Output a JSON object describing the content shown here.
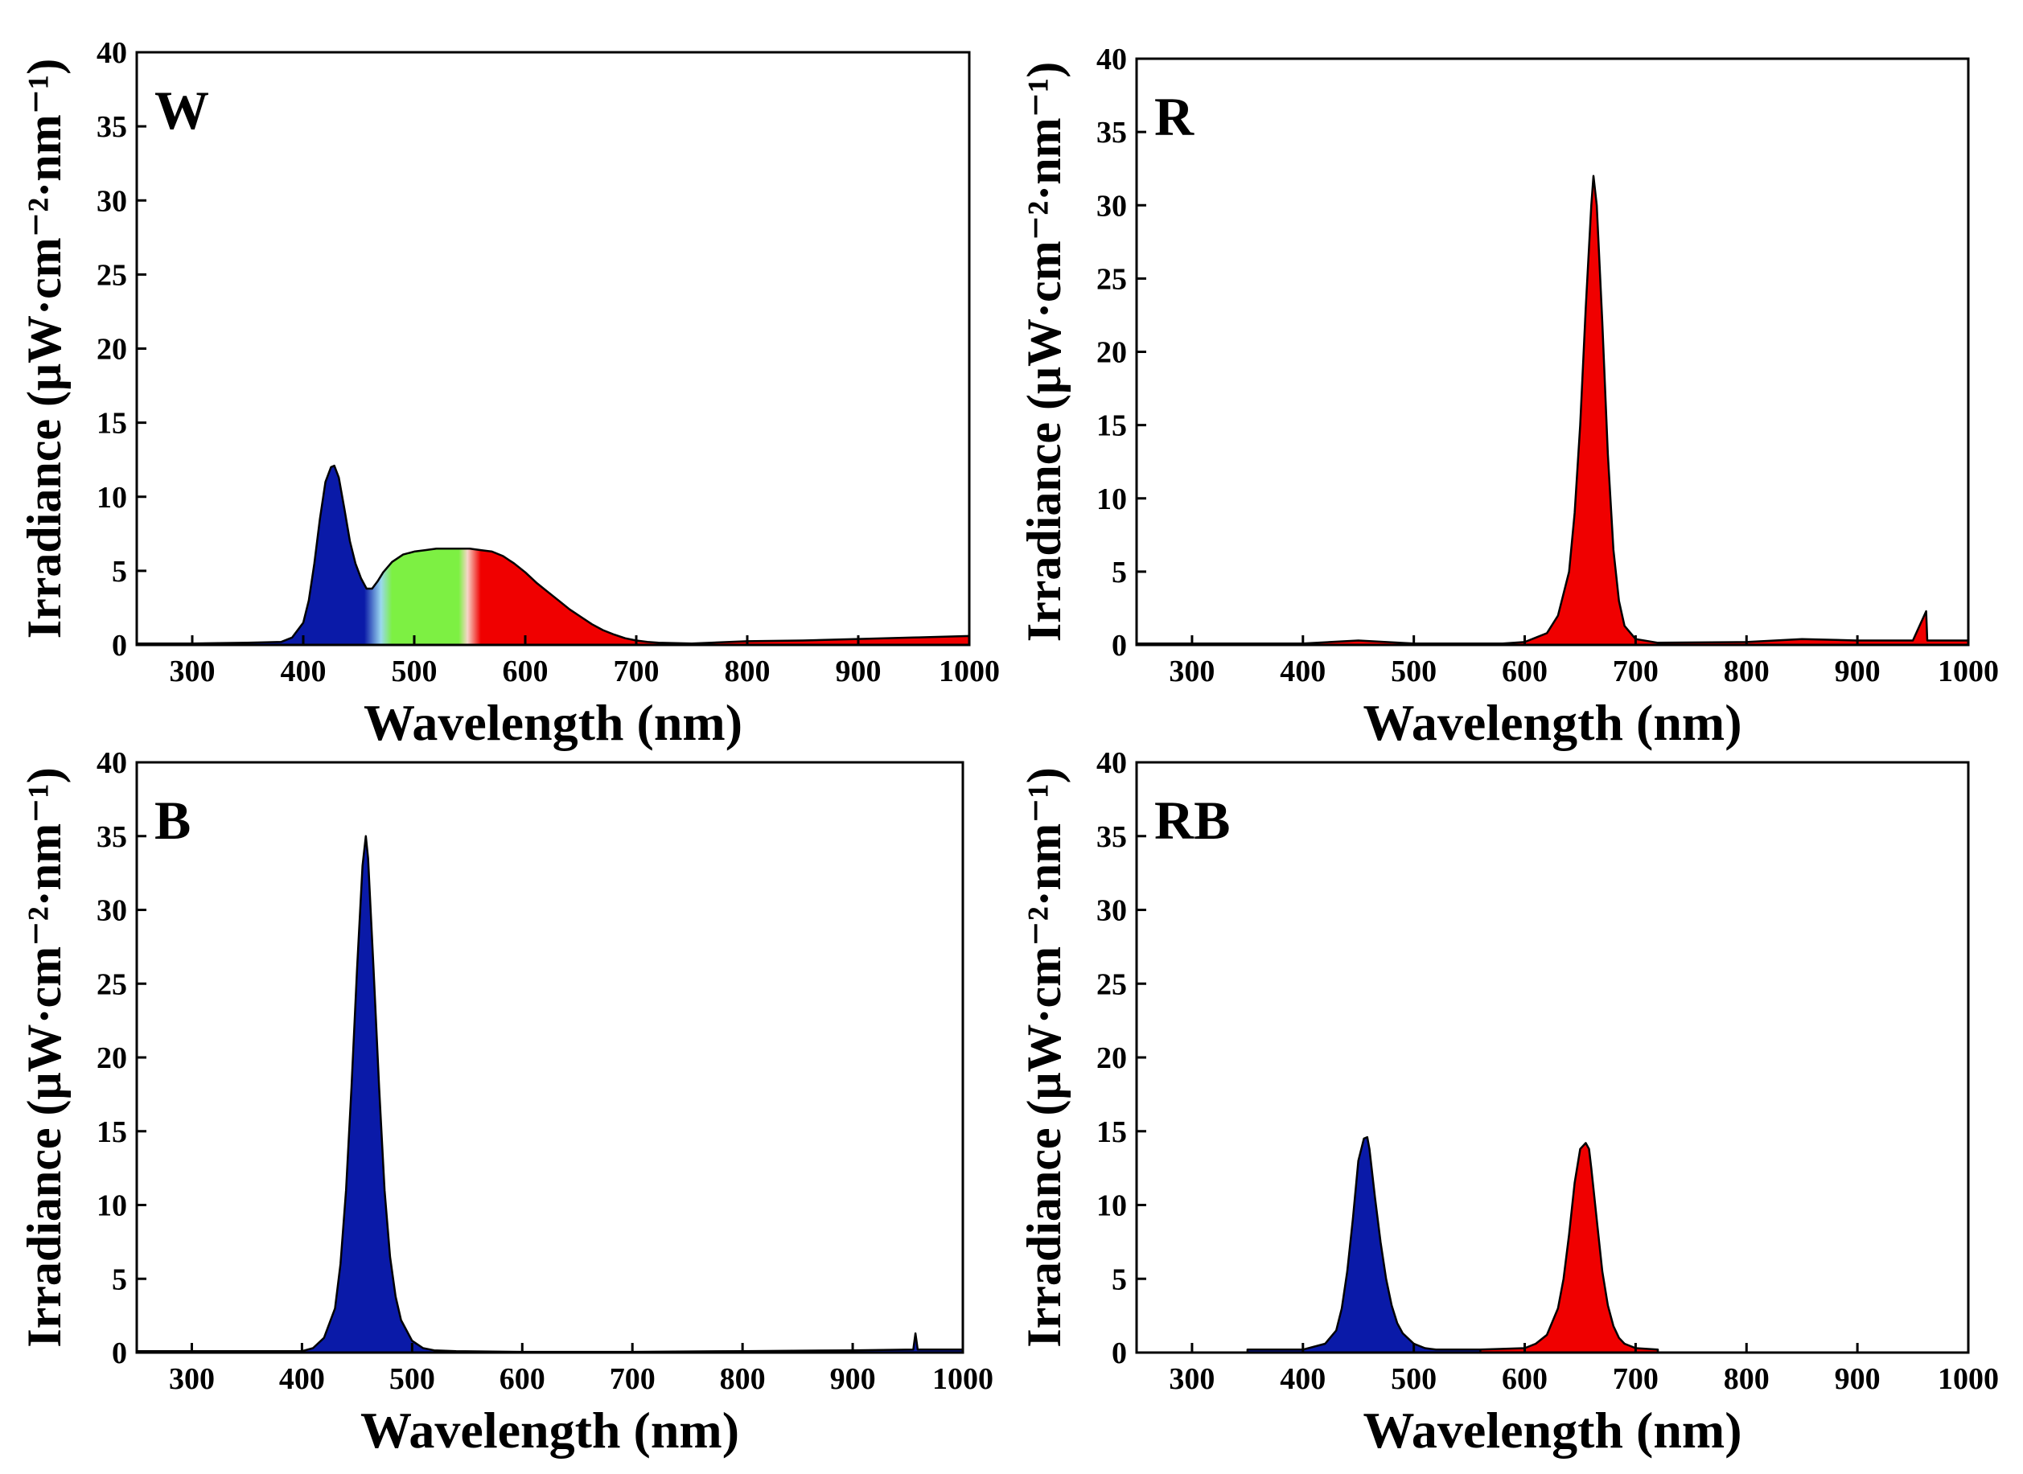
{
  "figure": {
    "colors": {
      "blue": "#0a1aa8",
      "green": "#7df043",
      "red": "#f00000",
      "line": "#000000",
      "axis": "#000000"
    }
  },
  "chart_data": [
    {
      "id": "W",
      "panel_label": "W",
      "type": "area",
      "xlabel": "Wavelength (nm)",
      "ylabel": "Irradiance (μW·cm⁻²·nm⁻¹)",
      "xlim": [
        250,
        1000
      ],
      "ylim": [
        0,
        40
      ],
      "xticks": [
        300,
        400,
        500,
        600,
        700,
        800,
        900,
        1000
      ],
      "yticks": [
        0,
        5,
        10,
        15,
        20,
        25,
        30,
        35,
        40
      ],
      "fill": "spectral gradient blue-green-red",
      "series": [
        {
          "x": [
            250,
            300,
            350,
            380,
            390,
            400,
            405,
            410,
            415,
            420,
            425,
            428,
            432,
            437,
            442,
            447,
            452,
            457,
            462,
            467,
            472,
            480,
            490,
            500,
            510,
            520,
            530,
            540,
            550,
            560,
            570,
            580,
            590,
            600,
            610,
            620,
            630,
            640,
            650,
            660,
            670,
            680,
            690,
            700,
            710,
            720,
            750,
            800,
            850,
            900,
            950,
            1000
          ],
          "y": [
            0.1,
            0.1,
            0.15,
            0.2,
            0.5,
            1.5,
            3.0,
            5.5,
            8.5,
            11.0,
            12.0,
            12.1,
            11.3,
            9.2,
            7.0,
            5.5,
            4.5,
            3.8,
            3.8,
            4.3,
            4.9,
            5.6,
            6.1,
            6.3,
            6.4,
            6.5,
            6.5,
            6.5,
            6.5,
            6.4,
            6.3,
            6.0,
            5.5,
            4.9,
            4.2,
            3.6,
            3.0,
            2.4,
            1.9,
            1.4,
            1.0,
            0.7,
            0.45,
            0.3,
            0.2,
            0.15,
            0.1,
            0.25,
            0.3,
            0.4,
            0.5,
            0.6
          ]
        }
      ]
    },
    {
      "id": "R",
      "panel_label": "R",
      "type": "area",
      "xlabel": "Wavelength (nm)",
      "ylabel": "Irradiance (μW·cm⁻²·nm⁻¹)",
      "xlim": [
        250,
        1000
      ],
      "ylim": [
        0,
        40
      ],
      "xticks": [
        300,
        400,
        500,
        600,
        700,
        800,
        900,
        1000
      ],
      "yticks": [
        0,
        5,
        10,
        15,
        20,
        25,
        30,
        35,
        40
      ],
      "fill": "red",
      "series": [
        {
          "x": [
            250,
            400,
            450,
            500,
            580,
            600,
            620,
            630,
            640,
            645,
            650,
            655,
            660,
            662,
            665,
            670,
            675,
            680,
            685,
            690,
            700,
            720,
            800,
            850,
            900,
            950,
            962,
            963,
            964,
            1000
          ],
          "y": [
            0.1,
            0.1,
            0.3,
            0.1,
            0.1,
            0.2,
            0.8,
            2.0,
            5.0,
            9.0,
            15.0,
            23.0,
            30.0,
            32.0,
            30.0,
            22.0,
            13.0,
            6.5,
            3.0,
            1.3,
            0.4,
            0.15,
            0.2,
            0.4,
            0.3,
            0.3,
            2.3,
            0.3,
            0.3,
            0.3
          ]
        }
      ]
    },
    {
      "id": "B",
      "panel_label": "B",
      "type": "area",
      "xlabel": "Wavelength (nm)",
      "ylabel": "Irradiance (μW·cm⁻²·nm⁻¹)",
      "xlim": [
        250,
        1000
      ],
      "ylim": [
        0,
        40
      ],
      "xticks": [
        300,
        400,
        500,
        600,
        700,
        800,
        900,
        1000
      ],
      "yticks": [
        0,
        5,
        10,
        15,
        20,
        25,
        30,
        35,
        40
      ],
      "fill": "blue",
      "series": [
        {
          "x": [
            250,
            400,
            410,
            420,
            430,
            435,
            440,
            445,
            450,
            455,
            458,
            460,
            465,
            470,
            475,
            480,
            485,
            490,
            500,
            510,
            520,
            540,
            600,
            700,
            800,
            900,
            955,
            957,
            959,
            1000
          ],
          "y": [
            0.1,
            0.1,
            0.3,
            1.0,
            3.0,
            6.0,
            11.0,
            18.0,
            26.0,
            33.0,
            35.0,
            33.5,
            26.0,
            18.0,
            11.0,
            6.5,
            3.8,
            2.2,
            0.8,
            0.3,
            0.15,
            0.1,
            0.05,
            0.05,
            0.1,
            0.15,
            0.2,
            1.3,
            0.2,
            0.2
          ]
        }
      ]
    },
    {
      "id": "RB",
      "panel_label": "RB",
      "type": "area",
      "xlabel": "Wavelength (nm)",
      "ylabel": "Irradiance (μW·cm⁻²·nm⁻¹)",
      "xlim": [
        250,
        1000
      ],
      "ylim": [
        0,
        40
      ],
      "xticks": [
        300,
        400,
        500,
        600,
        700,
        800,
        900,
        1000
      ],
      "yticks": [
        0,
        5,
        10,
        15,
        20,
        25,
        30,
        35,
        40
      ],
      "fill": "blue and red",
      "series": [
        {
          "name": "blue peak",
          "x": [
            350,
            400,
            420,
            430,
            435,
            440,
            445,
            450,
            455,
            458,
            460,
            465,
            470,
            475,
            480,
            485,
            490,
            500,
            510,
            520,
            540,
            560
          ],
          "y": [
            0.2,
            0.2,
            0.6,
            1.5,
            3.0,
            5.5,
            9.0,
            13.0,
            14.5,
            14.6,
            13.8,
            10.5,
            7.5,
            5.0,
            3.2,
            2.0,
            1.3,
            0.6,
            0.3,
            0.2,
            0.2,
            0.2
          ]
        },
        {
          "name": "red peak",
          "x": [
            560,
            600,
            610,
            620,
            630,
            635,
            640,
            645,
            650,
            655,
            658,
            660,
            665,
            670,
            675,
            680,
            685,
            690,
            700,
            720
          ],
          "y": [
            0.2,
            0.3,
            0.6,
            1.2,
            3.0,
            5.0,
            8.0,
            11.5,
            13.8,
            14.2,
            13.8,
            12.5,
            9.0,
            5.5,
            3.2,
            1.8,
            1.0,
            0.6,
            0.3,
            0.2
          ]
        }
      ]
    }
  ]
}
